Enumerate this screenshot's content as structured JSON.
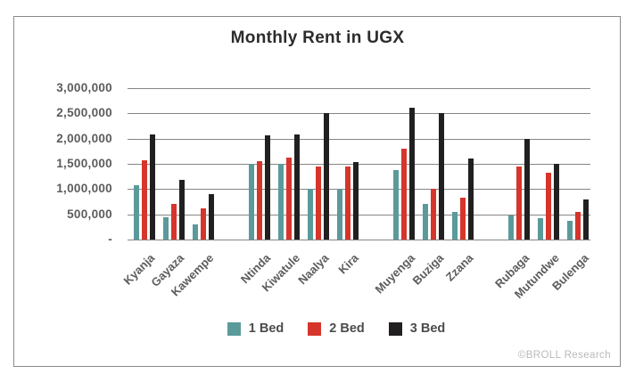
{
  "frame": {
    "footer": "©BROLL Research"
  },
  "chart_data": {
    "type": "bar",
    "title": "Monthly Rent in UGX",
    "xlabel": "",
    "ylabel": "",
    "ylim": [
      0,
      3000000
    ],
    "grid": "horizontal",
    "legend_position": "bottom-center",
    "categories": [
      "Kyanja",
      "Gayaza",
      "Kawempe",
      "Ntinda",
      "Kiwatule",
      "Naalya",
      "Kira",
      "Muyenga",
      "Buziga",
      "Zzana",
      "Rubaga",
      "Mutundwe",
      "Bulenga"
    ],
    "cluster_sizes": [
      3,
      4,
      3,
      3
    ],
    "series": [
      {
        "name": "1 Bed",
        "color": "#5b9a9a",
        "values": [
          1080000,
          450000,
          300000,
          1500000,
          1500000,
          1000000,
          1000000,
          1380000,
          700000,
          550000,
          480000,
          420000,
          380000
        ]
      },
      {
        "name": "2 Bed",
        "color": "#d6352c",
        "values": [
          1570000,
          700000,
          620000,
          1550000,
          1620000,
          1450000,
          1450000,
          1800000,
          1000000,
          830000,
          1450000,
          1330000,
          550000
        ]
      },
      {
        "name": "3 Bed",
        "color": "#221f20",
        "values": [
          2080000,
          1180000,
          900000,
          2060000,
          2080000,
          2500000,
          1530000,
          2620000,
          2500000,
          1600000,
          2000000,
          1500000,
          790000
        ]
      }
    ],
    "y_ticks": [
      {
        "label": "3,000,000",
        "value": 3000000
      },
      {
        "label": "2,500,000",
        "value": 2500000
      },
      {
        "label": "2,000,000",
        "value": 2000000
      },
      {
        "label": "1,500,000",
        "value": 1500000
      },
      {
        "label": "1,000,000",
        "value": 1000000
      },
      {
        "label": "500,000",
        "value": 500000
      },
      {
        "label": "-",
        "value": 0
      }
    ]
  }
}
